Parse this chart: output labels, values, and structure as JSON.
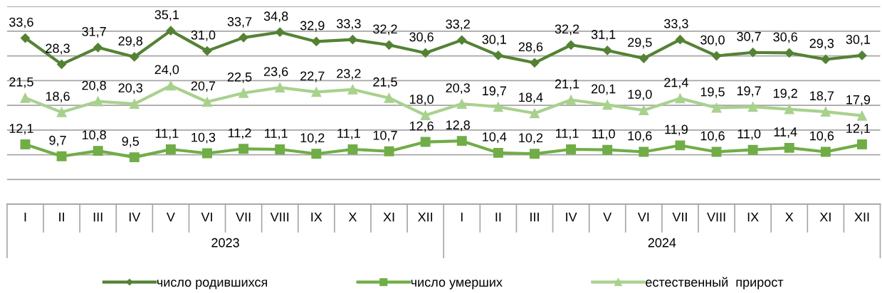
{
  "chart_data": {
    "type": "line",
    "categories": [
      "I",
      "II",
      "III",
      "IV",
      "V",
      "VI",
      "VII",
      "VIII",
      "IX",
      "X",
      "XI",
      "XII",
      "I",
      "II",
      "III",
      "IV",
      "V",
      "VI",
      "VII",
      "VIII",
      "IX",
      "X",
      "XI",
      "XII"
    ],
    "annotations": [
      "2023",
      "2024"
    ],
    "series": [
      {
        "name": "число родившихся",
        "color": "#548235",
        "marker": "diamond",
        "values": [
          33.6,
          28.3,
          31.7,
          29.8,
          35.1,
          31.0,
          33.7,
          34.8,
          32.9,
          33.3,
          32.2,
          30.6,
          33.2,
          30.1,
          28.6,
          32.2,
          31.1,
          29.5,
          33.3,
          30.0,
          30.7,
          30.6,
          29.3,
          30.1
        ],
        "value_labels": [
          "33,6",
          "28,3",
          "31,7",
          "29,8",
          "35,1",
          "31,0",
          "33,7",
          "34,8",
          "32,9",
          "33,3",
          "32,2",
          "30,6",
          "33,2",
          "30,1",
          "28,6",
          "32,2",
          "31,1",
          "29,5",
          "33,3",
          "30,0",
          "30,7",
          "30,6",
          "29,3",
          "30,1"
        ]
      },
      {
        "name": "число умерших",
        "color": "#70ad47",
        "marker": "square",
        "values": [
          12.1,
          9.7,
          10.8,
          9.5,
          11.1,
          10.3,
          11.2,
          11.1,
          10.2,
          11.1,
          10.7,
          12.6,
          12.8,
          10.4,
          10.2,
          11.1,
          11.0,
          10.6,
          11.9,
          10.6,
          11.0,
          11.4,
          10.6,
          12.1
        ],
        "value_labels": [
          "12,1",
          "9,7",
          "10,8",
          "9,5",
          "11,1",
          "10,3",
          "11,2",
          "11,1",
          "10,2",
          "11,1",
          "10,7",
          "12,6",
          "12,8",
          "10,4",
          "10,2",
          "11,1",
          "11,0",
          "10,6",
          "11,9",
          "10,6",
          "11,0",
          "11,4",
          "10,6",
          "12,1"
        ]
      },
      {
        "name": "естественный  прирост",
        "color": "#a9d18e",
        "marker": "triangle",
        "values": [
          21.5,
          18.6,
          20.8,
          20.3,
          24.0,
          20.7,
          22.5,
          23.6,
          22.7,
          23.2,
          21.5,
          18.0,
          20.3,
          19.7,
          18.4,
          21.1,
          20.1,
          19.0,
          21.4,
          19.5,
          19.7,
          19.2,
          18.7,
          17.9
        ],
        "value_labels": [
          "21,5",
          "18,6",
          "20,8",
          "20,3",
          "24,0",
          "20,7",
          "22,5",
          "23,6",
          "22,7",
          "23,2",
          "21,5",
          "18,0",
          "20,3",
          "19,7",
          "18,4",
          "21,1",
          "20,1",
          "19,0",
          "21,4",
          "19,5",
          "19,7",
          "19,2",
          "18,7",
          "17,9"
        ]
      }
    ],
    "ylim": [
      0,
      40
    ],
    "yticks": [
      {
        "value": 0,
        "label": null
      },
      {
        "value": 5,
        "label": null
      },
      {
        "value": 10,
        "label": null
      },
      {
        "value": 15,
        "label": null
      },
      {
        "value": 20,
        "label": null
      },
      {
        "value": 25,
        "label": null
      },
      {
        "value": 30,
        "label": null
      },
      {
        "value": 35,
        "label": null
      },
      {
        "value": 40,
        "label": null
      }
    ],
    "tick_labels": "x",
    "grid": "y",
    "legend": "bottom",
    "line_style": "solid"
  }
}
